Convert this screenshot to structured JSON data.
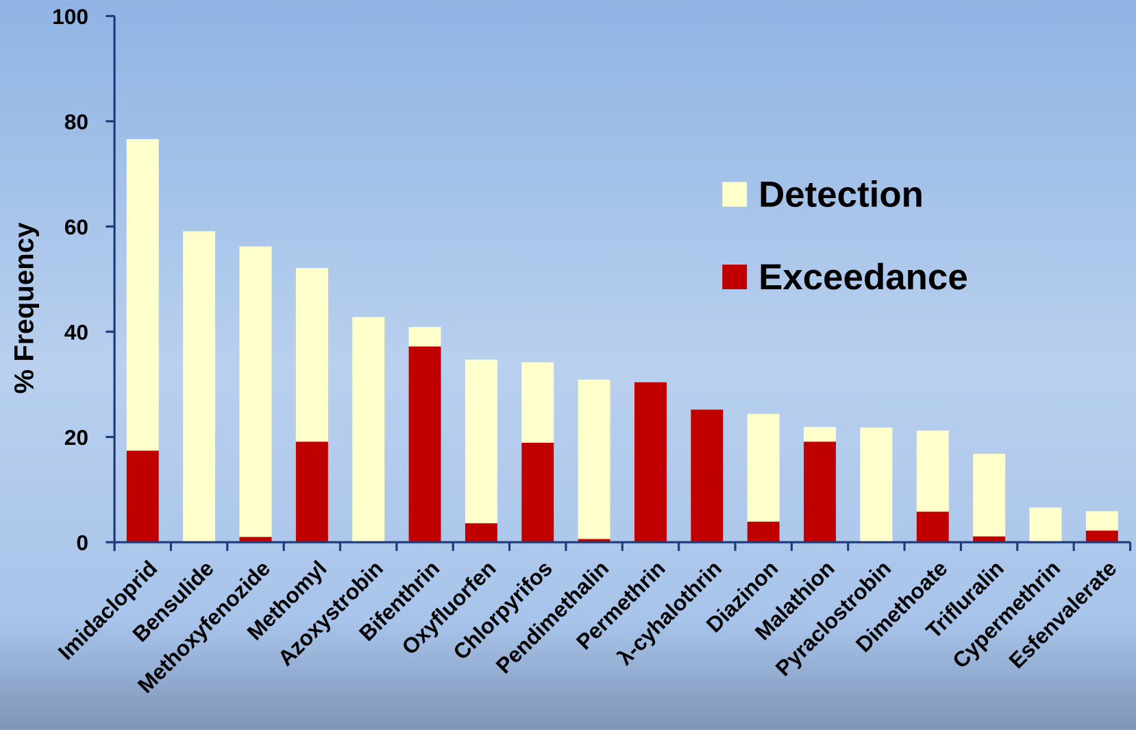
{
  "chart_data": {
    "type": "bar",
    "y_label": "% Frequency",
    "categories": [
      "Imidacloprid",
      "Bensulide",
      "Methoxyfenozide",
      "Methomyl",
      "Azoxystrobin",
      "Bifenthrin",
      "Oxyfluorfen",
      "Chlorpyrifos",
      "Pendimethalin",
      "Permethrin",
      "λ-cyhalothrin",
      "Diazinon",
      "Malathion",
      "Pyraclostrobin",
      "Dimethoate",
      "Trifluralin",
      "Cypermethrin",
      "Esfenvalerate"
    ],
    "series": [
      {
        "name": "Detection",
        "color": "#ffffcc",
        "values": [
          76.6,
          59.1,
          56.2,
          52.1,
          42.8,
          40.9,
          34.7,
          34.2,
          30.9,
          30.4,
          25.2,
          24.4,
          21.9,
          21.8,
          21.2,
          16.8,
          6.6,
          5.9
        ]
      },
      {
        "name": "Exceedance",
        "color": "#c00000",
        "values": [
          17.4,
          0,
          1.0,
          19.1,
          0,
          37.2,
          3.6,
          18.9,
          0.6,
          30.4,
          25.2,
          3.9,
          19.1,
          0,
          5.8,
          1.1,
          0,
          2.2
        ]
      }
    ],
    "ylim": [
      0,
      100
    ],
    "yticks": [
      0,
      20,
      40,
      60,
      80,
      100
    ],
    "legend": "upper right"
  }
}
